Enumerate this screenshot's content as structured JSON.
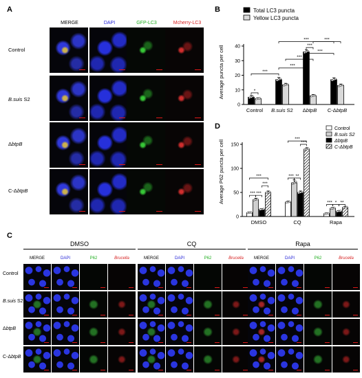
{
  "panels": {
    "a": "A",
    "b": "B",
    "c": "C",
    "d": "D"
  },
  "panel_a": {
    "columns": [
      {
        "text": "MERGE",
        "color": "#000000"
      },
      {
        "text": "DAPI",
        "color": "#1f1fd6"
      },
      {
        "text": "GFP-LC3",
        "color": "#1fae1f"
      },
      {
        "text": "Mcherry-LC3",
        "color": "#d61f1f"
      }
    ],
    "rows": [
      {
        "pre": "Control",
        "ital": "",
        "post": ""
      },
      {
        "pre": "",
        "ital": "B.suis",
        "post": " S2"
      },
      {
        "pre": "Δ",
        "ital": "btpB",
        "post": ""
      },
      {
        "pre": "C-Δ",
        "ital": "btpB",
        "post": ""
      }
    ]
  },
  "panel_c": {
    "groups": [
      "DMSO",
      "CQ",
      "Rapa"
    ],
    "columns": [
      {
        "text": "MERGE",
        "color": "#000000",
        "italic": false
      },
      {
        "text": "DAPI",
        "color": "#1f1fd6",
        "italic": false
      },
      {
        "text": "P62",
        "color": "#1fae1f",
        "italic": false
      },
      {
        "text": "Brucella",
        "color": "#d61f1f",
        "italic": true
      }
    ],
    "rows": [
      {
        "pre": "Control",
        "ital": "",
        "post": ""
      },
      {
        "pre": "",
        "ital": "B.suis",
        "post": " S2"
      },
      {
        "pre": "Δ",
        "ital": "btpB",
        "post": ""
      },
      {
        "pre": "C-Δ",
        "ital": "btpB",
        "post": ""
      }
    ]
  },
  "chart_data": [
    {
      "id": "B",
      "type": "bar",
      "ylabel": "Average  puncta per cell",
      "ylim": [
        0,
        40
      ],
      "yticks": [
        0,
        10,
        20,
        30,
        40
      ],
      "categories": [
        {
          "pre": "Control",
          "ital": "",
          "post": ""
        },
        {
          "pre": "",
          "ital": "B.suis",
          "post": " S2"
        },
        {
          "pre": "Δ",
          "ital": "btpB",
          "post": ""
        },
        {
          "pre": "C-Δ",
          "ital": "btpB",
          "post": ""
        }
      ],
      "series": [
        {
          "name": "Total LC3 puncta",
          "values": [
            5,
            17,
            36,
            17
          ],
          "errors": [
            1.2,
            1.5,
            1.5,
            1.3
          ],
          "fill": "#000000",
          "pattern": "solid"
        },
        {
          "name": "Yellow LC3 puncta",
          "values": [
            4,
            13.5,
            6,
            13
          ],
          "errors": [
            0.6,
            1.0,
            0.8,
            1.0
          ],
          "fill": "#d9d9d9",
          "pattern": "solid"
        }
      ],
      "legend_position": "top",
      "significance": [
        {
          "from": [
            0,
            0
          ],
          "to": [
            0,
            1
          ],
          "text": "*",
          "y": 8
        },
        {
          "from": [
            0,
            0
          ],
          "to": [
            1,
            0
          ],
          "text": "***",
          "y": 21
        },
        {
          "from": [
            1,
            0
          ],
          "to": [
            2,
            0
          ],
          "text": "***",
          "y": 25
        },
        {
          "from": [
            1,
            1
          ],
          "to": [
            2,
            1
          ],
          "text": "***",
          "y": 31
        },
        {
          "from": [
            2,
            0
          ],
          "to": [
            2,
            1
          ],
          "text": "***",
          "y": 39
        },
        {
          "from": [
            1,
            0
          ],
          "to": [
            3,
            0
          ],
          "text": "***",
          "y": 43
        },
        {
          "from": [
            2,
            0
          ],
          "to": [
            3,
            0
          ],
          "text": "***",
          "y": 35
        },
        {
          "from": [
            2,
            1
          ],
          "to": [
            3,
            1
          ],
          "text": "***",
          "y": 43
        }
      ]
    },
    {
      "id": "D",
      "type": "bar",
      "ylabel": "Average P62 puncta per cell",
      "ylim": [
        0,
        150
      ],
      "yticks": [
        0,
        50,
        100,
        150
      ],
      "categories": [
        {
          "pre": "DMSO",
          "ital": "",
          "post": ""
        },
        {
          "pre": "CQ",
          "ital": "",
          "post": ""
        },
        {
          "pre": "Rapa",
          "ital": "",
          "post": ""
        }
      ],
      "series": [
        {
          "name": "Control",
          "values": [
            8,
            30,
            6
          ],
          "errors": [
            1.5,
            2,
            1.5
          ],
          "fill": "#ffffff",
          "pattern": "solid"
        },
        {
          "name": "B.suis S2",
          "values": [
            35,
            70,
            17
          ],
          "errors": [
            3,
            6,
            2
          ],
          "fill": "#cfcfcf",
          "pattern": "solid"
        },
        {
          "name": "ΔbtpB",
          "values": [
            15,
            50,
            11
          ],
          "errors": [
            1.5,
            3,
            1.5
          ],
          "fill": "#000000",
          "pattern": "solid"
        },
        {
          "name": "C-ΔbtpB",
          "values": [
            50,
            140,
            19
          ],
          "errors": [
            3,
            3,
            2
          ],
          "fill": "#ffffff",
          "pattern": "hatch"
        }
      ],
      "legend_position": "top-right",
      "significance": [
        {
          "from": [
            0,
            0
          ],
          "to": [
            0,
            1
          ],
          "text": "***",
          "y": 44
        },
        {
          "from": [
            0,
            1
          ],
          "to": [
            0,
            2
          ],
          "text": "***",
          "y": 44
        },
        {
          "from": [
            0,
            2
          ],
          "to": [
            0,
            3
          ],
          "text": "***",
          "y": 64
        },
        {
          "from": [
            0,
            0
          ],
          "to": [
            0,
            3
          ],
          "text": "***",
          "y": 80
        },
        {
          "from": [
            1,
            0
          ],
          "to": [
            1,
            1
          ],
          "text": "***",
          "y": 80
        },
        {
          "from": [
            1,
            1
          ],
          "to": [
            1,
            2
          ],
          "text": "**",
          "y": 80
        },
        {
          "from": [
            1,
            2
          ],
          "to": [
            1,
            3
          ],
          "text": "***",
          "y": 150
        },
        {
          "from": [
            1,
            0
          ],
          "to": [
            1,
            3
          ],
          "text": "***",
          "y": 157
        },
        {
          "from": [
            2,
            0
          ],
          "to": [
            2,
            1
          ],
          "text": "***",
          "y": 25
        },
        {
          "from": [
            2,
            1
          ],
          "to": [
            2,
            2
          ],
          "text": "*",
          "y": 25
        },
        {
          "from": [
            2,
            2
          ],
          "to": [
            2,
            3
          ],
          "text": "**",
          "y": 25
        }
      ]
    }
  ]
}
